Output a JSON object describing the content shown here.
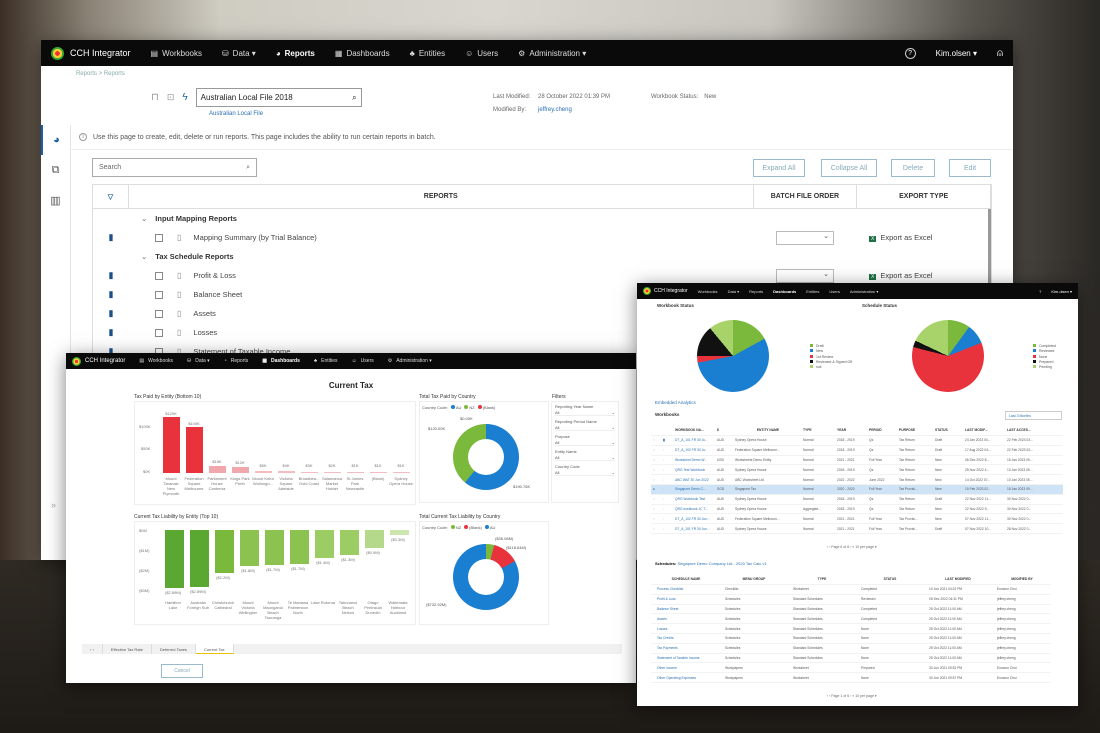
{
  "app_name": "CCH Integrator",
  "nav": {
    "items": [
      {
        "label": "Workbooks",
        "icon": "book-icon"
      },
      {
        "label": "Data ▾",
        "icon": "database-icon"
      },
      {
        "label": "Reports",
        "icon": "pie-icon"
      },
      {
        "label": "Dashboards",
        "icon": "dashboard-icon"
      },
      {
        "label": "Entities",
        "icon": "entities-icon"
      },
      {
        "label": "Users",
        "icon": "users-icon"
      },
      {
        "label": "Administration ▾",
        "icon": "gear-icon"
      }
    ],
    "help": "?",
    "user": "Kim.olsen ▾"
  },
  "reports_page": {
    "breadcrumb": "Reports  >  Reports",
    "workbook_name": "Australian Local File 2018",
    "workbook_sub": "Australian Local File",
    "last_modified_label": "Last Modified:",
    "last_modified": "28 October 2022 01:39 PM",
    "modified_by_label": "Modified By:",
    "modified_by": "jeffrey.cheng",
    "status_label": "Workbook Status:",
    "status": "New",
    "info": "Use this page to create, edit, delete or run reports. This page includes the ability to run certain reports in batch.",
    "search_placeholder": "Search",
    "buttons": {
      "expand": "Expand All",
      "collapse": "Collapse All",
      "delete": "Delete",
      "edit": "Edit"
    },
    "columns": {
      "reports": "REPORTS",
      "batch": "BATCH FILE ORDER",
      "export": "EXPORT TYPE"
    },
    "groups": [
      {
        "name": "Input Mapping Reports",
        "items": [
          "Mapping Summary (by Trial Balance)"
        ]
      },
      {
        "name": "Tax Schedule Reports",
        "items": [
          "Profit & Loss",
          "Balance Sheet",
          "Assets",
          "Losses",
          "Statement of Taxable Income"
        ]
      }
    ],
    "export_label": "Export as Excel"
  },
  "dashboard": {
    "title": "Current Tax",
    "tabs": [
      "Effective Tax Rate",
      "Deferred Taxes",
      "Current Tax"
    ],
    "cancel": "Cancel",
    "filters": {
      "title": "Filters",
      "items": [
        {
          "label": "Reporting Year Name",
          "value": "All"
        },
        {
          "label": "Reporting Period Name",
          "value": "All"
        },
        {
          "label": "Purpose",
          "value": "All"
        },
        {
          "label": "Entity Name",
          "value": "All"
        },
        {
          "label": "Country Code",
          "value": "All"
        }
      ]
    }
  },
  "chart_data": [
    {
      "type": "bar",
      "title": "Tax Paid by Entity (Bottom 10)",
      "categories": [
        "Mount Taranaki New Plymouth",
        "Federation Square Melbourne",
        "Parliament House Canberra",
        "Kings Park Perth",
        "Mount Keira Wollongo...",
        "Victoria Square Adelaide",
        "Broadbea... Gold Coast",
        "Salamanca Market Hobart",
        "St James Park Newcastle",
        "(Blank)",
        "Sydney Opera House"
      ],
      "labels": [
        "$120K",
        "$100K",
        "$15K",
        "$12K",
        "$5K",
        "$4K",
        "$3K",
        "$2K",
        "$1K",
        "$1K",
        "$1K"
      ],
      "values": [
        120,
        100,
        15,
        12,
        5,
        4,
        3,
        2,
        1,
        1,
        1
      ],
      "yticks": [
        "$100K",
        "$50K",
        "$0K"
      ],
      "ylim": [
        0,
        125
      ]
    },
    {
      "type": "pie",
      "title": "Total Tax Paid by Country",
      "legend_title": "Country Code",
      "categories": [
        "AU",
        "NZ",
        "(Blank)"
      ],
      "values": [
        190.76,
        120.0,
        0.0
      ],
      "labels": [
        "$190.76K",
        "$120.00K",
        "$0.00K"
      ]
    },
    {
      "type": "bar",
      "title": "Current Tax Liability by Entity (Top 10)",
      "categories": [
        "Hamilton Lake",
        "Australia Foreign Sub",
        "Christchurch Cathedral",
        "Mount Victoria Wellington",
        "Mount Maunganui Beach Tauranga",
        "Te Manawa Palmerston North",
        "Lake Rotorua",
        "Tahunanui Beach Nelson",
        "Otago Peninsula Dunedin",
        "Waitemata Harbour Auckland"
      ],
      "labels": [
        "($2.89M)",
        "($2.89M)",
        "($2.2M)",
        "($1.8M)",
        "($1.7M)",
        "($1.7M)",
        "($1.4M)",
        "($1.3M)",
        "($0.9M)",
        "($0.3M)"
      ],
      "values": [
        -2.89,
        -2.89,
        -2.2,
        -1.8,
        -1.7,
        -1.7,
        -1.4,
        -1.3,
        -0.9,
        -0.3
      ],
      "yticks": [
        "$0M",
        "($1M)",
        "($2M)",
        "($3M)"
      ]
    },
    {
      "type": "pie",
      "title": "Total Current Tax Liability by Country",
      "legend_title": "Country Code",
      "categories": [
        "NZ",
        "(Blank)",
        "AU"
      ],
      "values": [
        36.08,
        118.64,
        732.92
      ],
      "labels": [
        "($36.08M)",
        "($118.64M)",
        "($732.92M)"
      ]
    },
    {
      "type": "pie",
      "title": "Workbook Status",
      "categories": [
        "Draft",
        "New",
        "1st Review",
        "Reviewed & Signed Off",
        "null"
      ],
      "values": [
        17,
        55,
        3,
        14,
        11
      ]
    },
    {
      "type": "pie",
      "title": "Schedule Status",
      "categories": [
        "Completed",
        "Reviewed",
        "None",
        "Prepared",
        "Pending"
      ],
      "values": [
        10,
        9,
        60,
        3,
        18
      ]
    }
  ],
  "workbooks_page": {
    "embedded": "Embedded Analytics",
    "workbooks_title": "Workbooks",
    "range": "Last 3 Months",
    "columns": [
      "WORKBOOK NA...",
      "$",
      "ENTITY NAME",
      "TYPE",
      "YEAR",
      "PERIOD",
      "PURPOSE",
      "STATUS",
      "LAST MODIF...",
      "LAST ACCES..."
    ],
    "rows": [
      [
        "DT_A_101 FR 30 Ju...",
        "AUD",
        "Sydney Opera House",
        "Normal",
        "2018 - 2019",
        "Qs",
        "Tax Return",
        "Draft",
        "24 Jan 2023 04...",
        "22 Feb 2023 03..."
      ],
      [
        "DT_A_102 FR 30 Ju...",
        "AUD",
        "Federation Square Melbourn...",
        "Normal",
        "2018 - 2019",
        "Qs",
        "Tax Return",
        "Draft",
        "17 Aug 2022 04...",
        "22 Feb 2023 03..."
      ],
      [
        "Worksheet Demo W...",
        "USD",
        "Worksheets Demo Entity",
        "Normal",
        "2021 - 2021",
        "Full Year",
        "Tax Return",
        "New",
        "06 Dec 2022 8...",
        "15 Jan 2023 09..."
      ],
      [
        "QRG Test Workbook",
        "AUD",
        "Sydney Opera House",
        "Normal",
        "2018 - 2019",
        "Qs",
        "Tax Return",
        "New",
        "25 Nov 2022 4...",
        "10 Jan 2023 05..."
      ],
      [
        "ABC WAT 30 Jun 2022",
        "AUD",
        "ABC Worksheet Ltd",
        "Normal",
        "2022 - 2022",
        "June 2022",
        "Tax Return",
        "New",
        "14 Oct 2022 07...",
        "10 Jan 2023 05..."
      ],
      [
        "Singapore Demo C...",
        "SGD",
        "Singapore Tax",
        "Normal",
        "2020 - 2020",
        "Full Year",
        "Tax Provisi...",
        "New",
        "15 Feb 2023 02...",
        "15 Jan 2023 09..."
      ],
      [
        "QRG Workbook Test",
        "AUD",
        "Sydney Opera House",
        "Normal",
        "2018 - 2019",
        "Qs",
        "Tax Return",
        "Draft",
        "22 Nov 2022 11...",
        "30 Nov 2022 0..."
      ],
      [
        "QRG workbook JC T...",
        "AUD",
        "Sydney Opera House",
        "Aggregate...",
        "2018 - 2019",
        "Qs",
        "Tax Return",
        "New",
        "22 Nov 2022 9...",
        "30 Nov 2022 0..."
      ],
      [
        "DT_A_102 FR 30 Jun...",
        "AUD",
        "Federation Square Melbourn...",
        "Normal",
        "2021 - 2021",
        "Full Year",
        "Tax Provisi...",
        "New",
        "07 Nov 2022 11...",
        "30 Nov 2022 0..."
      ],
      [
        "DT_A_101 FR 30 Jun...",
        "AUD",
        "Sydney Opera House",
        "Normal",
        "2021 - 2021",
        "Full Year",
        "Tax Provisi...",
        "Draft",
        "07 Nov 2022 10...",
        "28 Nov 2022 0..."
      ]
    ],
    "pager": "‹  ‹   Page 6 of 6   ›  »    10 per page ▾",
    "schedules_label": "Schedules:",
    "schedules_context": "Singapore Demo Company Ltd - 2020 Tax Calc v1",
    "sched_columns": [
      "SCHEDULE NAME",
      "MENU GROUP",
      "TYPE",
      "STATUS",
      "LAST MODIFIED",
      "MODIFIED BY"
    ],
    "sched_rows": [
      [
        "Process Checklist",
        "Checklist",
        "Worksheet",
        "Completed",
        "10 Jun 2021 04:22 PM",
        "Eunwoo Choi"
      ],
      [
        "Profit & Loss",
        "Schedules",
        "Standard Schedules",
        "Reviewed",
        "05 Dec 2022 04:31 PM",
        "jeffrey.cheng"
      ],
      [
        "Balance Sheet",
        "Schedules",
        "Standard Schedules",
        "Completed",
        "25 Oct 2022 11:00 AM",
        "jeffrey.cheng"
      ],
      [
        "Assets",
        "Schedules",
        "Standard Schedules",
        "Completed",
        "25 Oct 2022 11:00 AM",
        "jeffrey.cheng"
      ],
      [
        "Losses",
        "Schedules",
        "Standard Schedules",
        "None",
        "25 Oct 2022 11:00 AM",
        "jeffrey.cheng"
      ],
      [
        "Tax Credits",
        "Schedules",
        "Standard Schedules",
        "None",
        "25 Oct 2022 11:00 AM",
        "jeffrey.cheng"
      ],
      [
        "Tax Payments",
        "Schedules",
        "Standard Schedules",
        "None",
        "25 Oct 2022 11:00 AM",
        "jeffrey.cheng"
      ],
      [
        "Statement of Taxable Income",
        "Schedules",
        "Standard Schedules",
        "None",
        "25 Oct 2022 11:00 AM",
        "jeffrey.cheng"
      ],
      [
        "Other Income",
        "Workpapers",
        "Worksheet",
        "Prepared",
        "30 Jun 2021 09:52 PM",
        "Eunwoo Choi"
      ],
      [
        "Other Operating Expenses",
        "Workpapers",
        "Worksheet",
        "None",
        "30 Jun 2021 09:57 PM",
        "Eunwoo Choi"
      ]
    ],
    "sched_pager": "‹  ‹   Page 1 of 6   ›  »    10 per page ▾"
  },
  "colors": {
    "brand_blue": "#1a5fa8",
    "red": "#e8323c",
    "green": "#7ab93c",
    "pie_blue": "#1a7fd0"
  }
}
